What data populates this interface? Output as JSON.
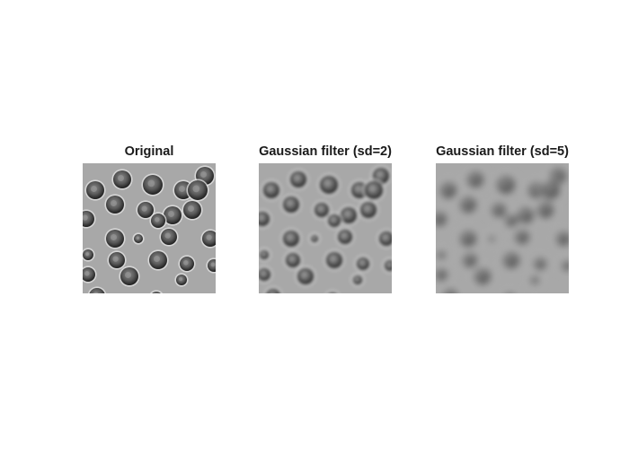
{
  "panels": [
    {
      "title": "Original",
      "blur": 0
    },
    {
      "title": "Gaussian filter (sd=2)",
      "blur": 2
    },
    {
      "title": "Gaussian filter (sd=5)",
      "blur": 5
    }
  ],
  "colors": {
    "background": "#ffffff",
    "field": "#a8a8a8",
    "cell_rim": "#1e1e1e",
    "cell_center": "#8a8a8a",
    "highlight": "#e6e6e6"
  }
}
